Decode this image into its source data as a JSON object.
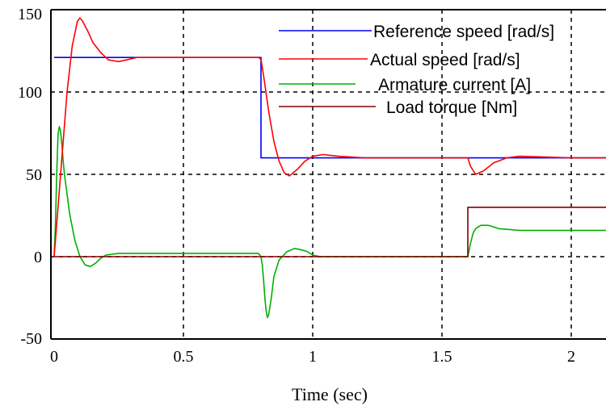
{
  "chart_data": {
    "type": "line",
    "title": "",
    "xlabel": "Time (sec)",
    "ylabel": "",
    "xlim": [
      0,
      2.2
    ],
    "ylim": [
      -50,
      150
    ],
    "xticks": [
      0,
      0.5,
      1,
      1.5,
      2
    ],
    "xtick_labels": [
      "0",
      "0.5",
      "1",
      "1.5",
      "2"
    ],
    "yticks": [
      -50,
      0,
      50,
      100,
      150
    ],
    "ytick_labels": [
      "-50",
      "0",
      "50",
      "100",
      "150"
    ],
    "grid": true,
    "legend_position": "top-right",
    "series": [
      {
        "name": "Reference speed [rad/s]",
        "color": "#0000ff",
        "x": [
          0,
          0.8,
          0.8,
          2.2
        ],
        "y": [
          121,
          121,
          60,
          60
        ]
      },
      {
        "name": "Actual speed [rad/s]",
        "color": "#ff0000",
        "x": [
          0,
          0.01,
          0.03,
          0.05,
          0.07,
          0.09,
          0.1,
          0.11,
          0.13,
          0.15,
          0.18,
          0.21,
          0.25,
          0.28,
          0.32,
          0.36,
          0.4,
          0.5,
          0.6,
          0.7,
          0.79,
          0.8,
          0.81,
          0.83,
          0.85,
          0.87,
          0.89,
          0.91,
          0.94,
          0.97,
          1.0,
          1.04,
          1.1,
          1.2,
          1.4,
          1.58,
          1.6,
          1.61,
          1.63,
          1.66,
          1.7,
          1.75,
          1.8,
          2.0,
          2.2
        ],
        "y": [
          0,
          20,
          60,
          100,
          128,
          143,
          145,
          143,
          137,
          130,
          124,
          119.5,
          118.5,
          119.5,
          121,
          121,
          121,
          121,
          121,
          121,
          121,
          120,
          110,
          88,
          70,
          58,
          51,
          49,
          53,
          58,
          61,
          62,
          61,
          60,
          60,
          60,
          60,
          55,
          50,
          52,
          57,
          60,
          61,
          60,
          60
        ]
      },
      {
        "name": "Armature current [A]",
        "color": "#00b000",
        "x": [
          0,
          0.005,
          0.01,
          0.015,
          0.02,
          0.025,
          0.03,
          0.035,
          0.04,
          0.05,
          0.06,
          0.08,
          0.1,
          0.12,
          0.14,
          0.16,
          0.18,
          0.2,
          0.25,
          0.3,
          0.4,
          0.5,
          0.6,
          0.7,
          0.79,
          0.8,
          0.805,
          0.81,
          0.815,
          0.82,
          0.825,
          0.83,
          0.84,
          0.85,
          0.87,
          0.9,
          0.93,
          0.96,
          0.98,
          1.0,
          1.03,
          1.07,
          1.15,
          1.3,
          1.5,
          1.58,
          1.6,
          1.61,
          1.62,
          1.63,
          1.65,
          1.68,
          1.72,
          1.8,
          2.0,
          2.2
        ],
        "y": [
          0,
          20,
          50,
          74,
          79,
          76,
          68,
          58,
          50,
          38,
          26,
          10,
          0,
          -5,
          -6,
          -4,
          -1,
          1,
          2,
          2,
          2,
          2,
          2,
          2,
          2,
          0,
          -5,
          -14,
          -25,
          -33,
          -37,
          -35,
          -25,
          -12,
          -2,
          3,
          5,
          4,
          3,
          1,
          0,
          0,
          0,
          0,
          0,
          0,
          0,
          8,
          14,
          17,
          19,
          19,
          17,
          16,
          16,
          16
        ]
      },
      {
        "name": "Load torque [Nm]",
        "color": "#800000",
        "x": [
          0,
          1.6,
          1.6,
          2.2
        ],
        "y": [
          0,
          0,
          30,
          30
        ]
      }
    ]
  }
}
